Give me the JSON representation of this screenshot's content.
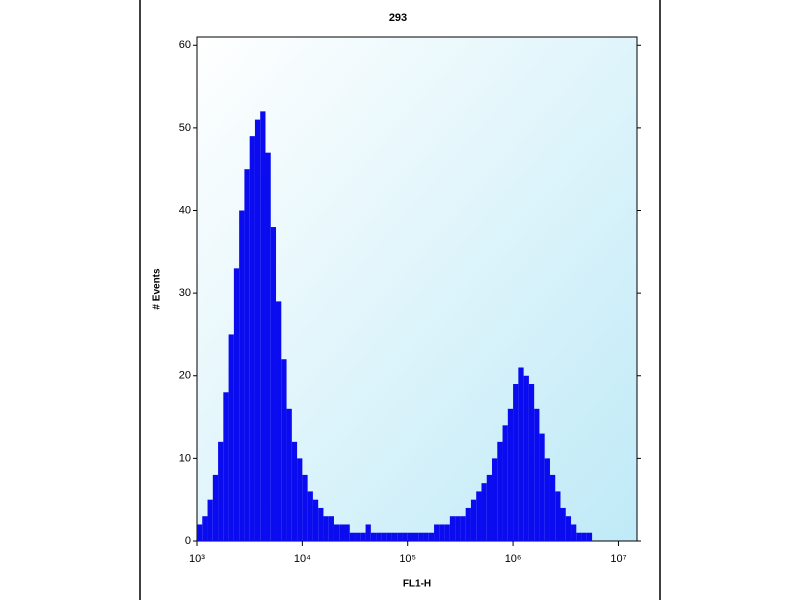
{
  "chart_data": {
    "type": "histogram",
    "title": "293",
    "x_label": "FL1-H",
    "y_label": "# Events",
    "xscale": "log",
    "color": "#0b0bf0",
    "bins": [
      1000,
      1122,
      1259,
      1413,
      1585,
      1778,
      1995,
      2239,
      2512,
      2818,
      3162,
      3548,
      3981,
      4467,
      5012,
      5623,
      6310,
      7079,
      7943,
      8913,
      10000,
      11220,
      12590,
      14130,
      15850,
      17780,
      19950,
      22390,
      25120,
      28180,
      31620,
      35480,
      39810,
      44670,
      50120,
      56230,
      63100,
      70790,
      79430,
      89130,
      100000,
      112200,
      125900,
      141300,
      158500,
      177800,
      199500,
      223900,
      251200,
      281800,
      316200,
      354800,
      398100,
      446700,
      501200,
      562300,
      631000,
      707900,
      794300,
      891300,
      1000000,
      1122000,
      1259000,
      1413000,
      1585000,
      1778000,
      1995000,
      2239000,
      2512000,
      2818000,
      3162000,
      3548000,
      3981000,
      4467000,
      5012000,
      5623000,
      6310000,
      7079000,
      7943000,
      8913000,
      10000000,
      11220000,
      12590000,
      14130000
    ],
    "counts": [
      2,
      3,
      5,
      8,
      12,
      18,
      25,
      33,
      40,
      45,
      49,
      51,
      52,
      47,
      38,
      29,
      22,
      16,
      12,
      10,
      8,
      6,
      5,
      4,
      3,
      3,
      2,
      2,
      2,
      1,
      1,
      1,
      2,
      1,
      1,
      1,
      1,
      1,
      1,
      1,
      1,
      1,
      1,
      1,
      1,
      2,
      2,
      2,
      3,
      3,
      3,
      4,
      5,
      6,
      7,
      8,
      10,
      12,
      14,
      16,
      19,
      21,
      20,
      19,
      16,
      13,
      10,
      8,
      6,
      4,
      3,
      2,
      1,
      1,
      1,
      0,
      0,
      0,
      0,
      0,
      0,
      0,
      0
    ],
    "xlim": [
      1000,
      15000000
    ],
    "xticks": [
      {
        "value": 1000,
        "label": "10³"
      },
      {
        "value": 10000,
        "label": "10⁴"
      },
      {
        "value": 100000,
        "label": "10⁵"
      },
      {
        "value": 1000000,
        "label": "10⁶"
      },
      {
        "value": 10000000,
        "label": "10⁷"
      }
    ],
    "ylim": [
      0,
      61
    ],
    "yticks": [
      0,
      10,
      20,
      30,
      40,
      50,
      60
    ]
  }
}
